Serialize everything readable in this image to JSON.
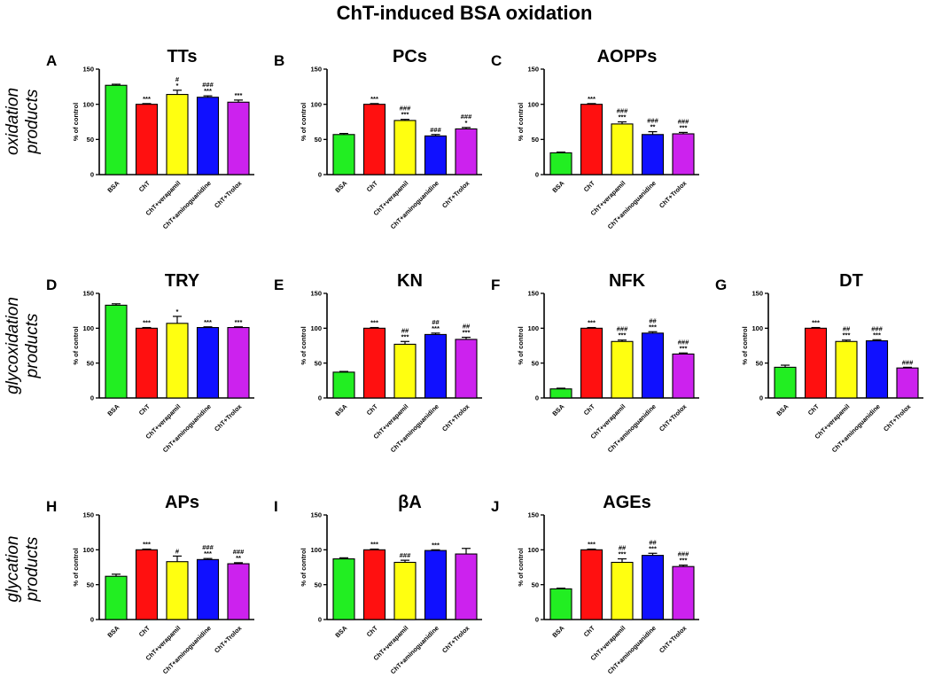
{
  "figure_title": "ChT-induced BSA oxidation",
  "row_labels": [
    {
      "line1": "oxidation",
      "line2": "products"
    },
    {
      "line1": "glycoxidation",
      "line2": "products"
    },
    {
      "line1": "glycation",
      "line2": "products"
    }
  ],
  "colors": {
    "BSA": "#22ee22",
    "ChT": "#ff1010",
    "ChT+verapamil": "#ffff10",
    "ChT+aminoguanidine": "#1010ff",
    "ChT+Trolox": "#cc22ee"
  },
  "chart_data": [
    {
      "letter": "A",
      "title": "TTs",
      "type": "bar",
      "ylabel": "% of control",
      "ylim": [
        0,
        150
      ],
      "yticks": [
        0,
        50,
        100,
        150
      ],
      "categories": [
        "BSA",
        "ChT",
        "ChT+verapamil",
        "ChT+aminoguanidine",
        "ChT+Trolox"
      ],
      "values": [
        127,
        100,
        114,
        110,
        103
      ],
      "errors": [
        1.5,
        1,
        6,
        2,
        3
      ],
      "annotations": [
        [],
        [
          "***"
        ],
        [
          "#",
          "*"
        ],
        [
          "###",
          "***"
        ],
        [
          "***"
        ]
      ]
    },
    {
      "letter": "B",
      "title": "PCs",
      "type": "bar",
      "ylabel": "% of control",
      "ylim": [
        0,
        150
      ],
      "yticks": [
        0,
        50,
        100,
        150
      ],
      "categories": [
        "BSA",
        "ChT",
        "ChT+verapamil",
        "ChT+aminoguanidine",
        "ChT+Trolox"
      ],
      "values": [
        57,
        100,
        77,
        55,
        65
      ],
      "errors": [
        1.5,
        1,
        1.5,
        2,
        2
      ],
      "annotations": [
        [],
        [
          "***"
        ],
        [
          "###",
          "***"
        ],
        [
          "###"
        ],
        [
          "###",
          "*"
        ]
      ]
    },
    {
      "letter": "C",
      "title": "AOPPs",
      "type": "bar",
      "ylabel": "% of control",
      "ylim": [
        0,
        150
      ],
      "yticks": [
        0,
        50,
        100,
        150
      ],
      "categories": [
        "BSA",
        "ChT",
        "ChT+verapamil",
        "ChT+aminoguanidine",
        "ChT+Trolox"
      ],
      "values": [
        31,
        100,
        72,
        57,
        58
      ],
      "errors": [
        1,
        1,
        3,
        4,
        2
      ],
      "annotations": [
        [],
        [
          "***"
        ],
        [
          "###",
          "***"
        ],
        [
          "###",
          "**"
        ],
        [
          "###",
          "***"
        ]
      ]
    },
    {
      "letter": "D",
      "title": "TRY",
      "type": "bar",
      "ylabel": "% of control",
      "ylim": [
        0,
        150
      ],
      "yticks": [
        0,
        50,
        100,
        150
      ],
      "categories": [
        "BSA",
        "ChT",
        "ChT+verapamil",
        "ChT+aminoguanidine",
        "ChT+Trolox"
      ],
      "values": [
        133,
        100,
        107,
        101,
        101
      ],
      "errors": [
        2,
        1,
        10,
        1,
        1
      ],
      "annotations": [
        [],
        [
          "***"
        ],
        [
          "*"
        ],
        [
          "***"
        ],
        [
          "***"
        ]
      ]
    },
    {
      "letter": "E",
      "title": "KN",
      "type": "bar",
      "ylabel": "% of control",
      "ylim": [
        0,
        150
      ],
      "yticks": [
        0,
        50,
        100,
        150
      ],
      "categories": [
        "BSA",
        "ChT",
        "ChT+verapamil",
        "ChT+aminoguanidine",
        "ChT+Trolox"
      ],
      "values": [
        37,
        100,
        77,
        91,
        84
      ],
      "errors": [
        1,
        1,
        4,
        2,
        3
      ],
      "annotations": [
        [],
        [
          "***"
        ],
        [
          "##",
          "***"
        ],
        [
          "##",
          "***"
        ],
        [
          "##",
          "***"
        ]
      ]
    },
    {
      "letter": "F",
      "title": "NFK",
      "type": "bar",
      "ylabel": "% of control",
      "ylim": [
        0,
        150
      ],
      "yticks": [
        0,
        50,
        100,
        150
      ],
      "categories": [
        "BSA",
        "ChT",
        "ChT+verapamil",
        "ChT+aminoguanidine",
        "ChT+Trolox"
      ],
      "values": [
        13,
        100,
        81,
        93,
        63
      ],
      "errors": [
        1,
        1,
        2,
        2,
        1.5
      ],
      "annotations": [
        [],
        [
          "***"
        ],
        [
          "###",
          "***"
        ],
        [
          "##",
          "***"
        ],
        [
          "###",
          "***"
        ]
      ]
    },
    {
      "letter": "G",
      "title": "DT",
      "type": "bar",
      "ylabel": "% of control",
      "ylim": [
        0,
        150
      ],
      "yticks": [
        0,
        50,
        100,
        150
      ],
      "categories": [
        "BSA",
        "ChT",
        "ChT+verapamil",
        "ChT+aminoguanidine",
        "ChT+Trolox"
      ],
      "values": [
        44,
        100,
        81,
        82,
        43
      ],
      "errors": [
        3,
        1,
        2,
        1.5,
        1
      ],
      "annotations": [
        [],
        [
          "***"
        ],
        [
          "##",
          "***"
        ],
        [
          "###",
          "***"
        ],
        [
          "###"
        ]
      ]
    },
    {
      "letter": "H",
      "title": "APs",
      "type": "bar",
      "ylabel": "% of control",
      "ylim": [
        0,
        150
      ],
      "yticks": [
        0,
        50,
        100,
        150
      ],
      "categories": [
        "BSA",
        "ChT",
        "ChT+verapamil",
        "ChT+aminoguanidine",
        "ChT+Trolox"
      ],
      "values": [
        62,
        100,
        83,
        86,
        80
      ],
      "errors": [
        3,
        1,
        8,
        1.5,
        1.5
      ],
      "annotations": [
        [],
        [
          "***"
        ],
        [
          "#"
        ],
        [
          "###",
          "***"
        ],
        [
          "###",
          "**"
        ]
      ]
    },
    {
      "letter": "I",
      "title": "βA",
      "type": "bar",
      "ylabel": "% of control",
      "ylim": [
        0,
        150
      ],
      "yticks": [
        0,
        50,
        100,
        150
      ],
      "categories": [
        "BSA",
        "ChT",
        "ChT+verapamil",
        "ChT+aminoguanidine",
        "ChT+Trolox"
      ],
      "values": [
        87,
        100,
        82,
        99,
        94
      ],
      "errors": [
        1.5,
        1,
        3,
        1,
        8
      ],
      "annotations": [
        [],
        [
          "***"
        ],
        [
          "###"
        ],
        [
          "***"
        ],
        []
      ]
    },
    {
      "letter": "J",
      "title": "AGEs",
      "type": "bar",
      "ylabel": "% of control",
      "ylim": [
        0,
        150
      ],
      "yticks": [
        0,
        50,
        100,
        150
      ],
      "categories": [
        "BSA",
        "ChT",
        "ChT+verapamil",
        "ChT+aminoguanidine",
        "ChT+Trolox"
      ],
      "values": [
        44,
        100,
        82,
        92,
        76
      ],
      "errors": [
        1,
        1,
        5,
        3,
        2
      ],
      "annotations": [
        [],
        [
          "***"
        ],
        [
          "##",
          "***"
        ],
        [
          "##",
          "***"
        ],
        [
          "###",
          "***"
        ]
      ]
    }
  ]
}
